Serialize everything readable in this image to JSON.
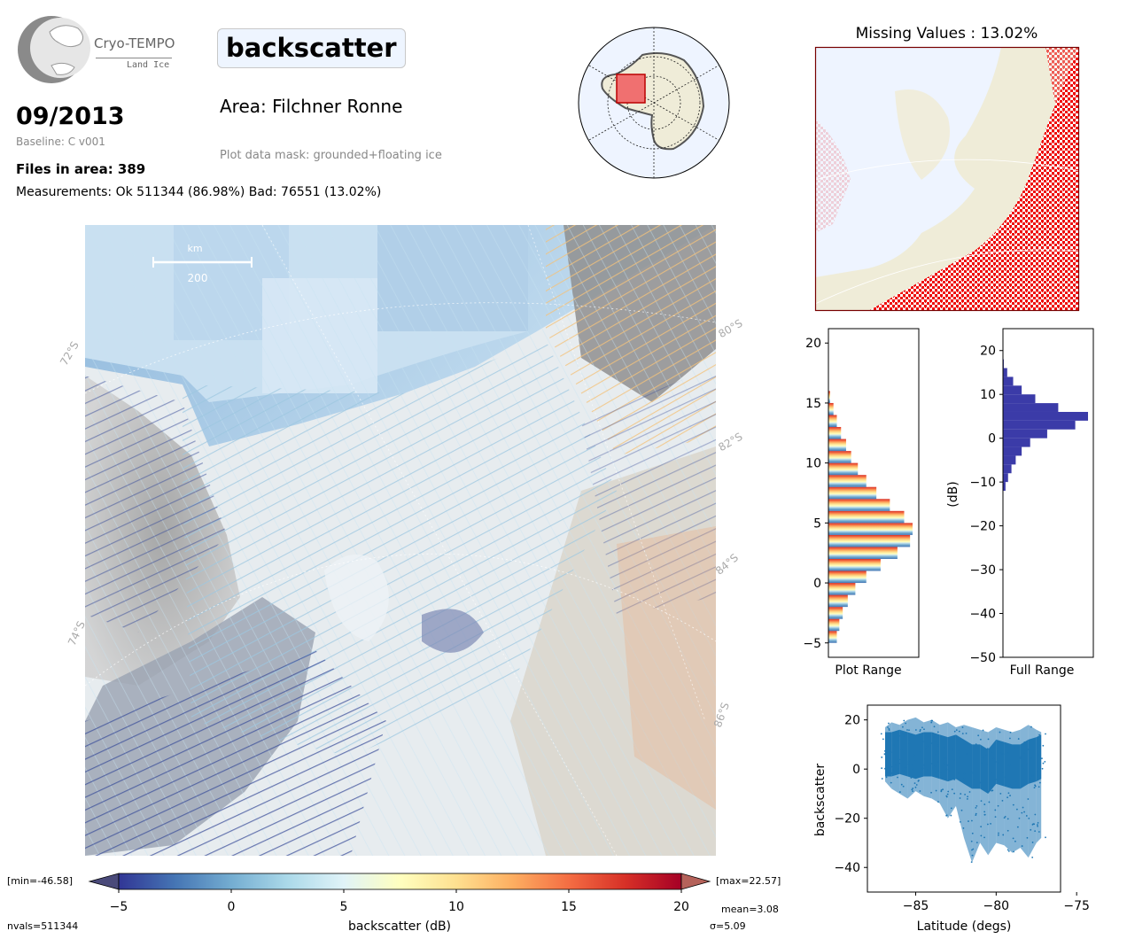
{
  "header": {
    "logo_name": "Cryo-TEMPO",
    "logo_sub": "Land Ice",
    "date": "09/2013",
    "baseline": "Baseline: C v001",
    "files_in_area": "Files in area: 389",
    "measurements": "Measurements: Ok 511344 (86.98%) Bad: 76551 (13.02%)",
    "parameter": "backscatter",
    "area": "Area: Filchner Ronne",
    "plot_mask": "Plot data mask: grounded+floating ice"
  },
  "map": {
    "scale_label_km": "km",
    "scale_value": "200",
    "lat_labels": [
      "72°S",
      "74°S",
      "80°S",
      "82°S",
      "84°S",
      "86°S"
    ]
  },
  "colorbar": {
    "min_label": "[min=-46.58]",
    "max_label": "[max=22.57]",
    "ticks": [
      "−5",
      "0",
      "5",
      "10",
      "15",
      "20"
    ],
    "label": "backscatter (dB)",
    "mean": "mean=3.08",
    "sigma": "σ=5.09",
    "nvals": "nvals=511344",
    "colors": [
      "#313695",
      "#4575b4",
      "#74add1",
      "#abd9e9",
      "#e0f3f8",
      "#ffffbf",
      "#fee090",
      "#fdae61",
      "#f46d43",
      "#d73027",
      "#a50026"
    ]
  },
  "missing_panel": {
    "title": "Missing Values : 13.02%",
    "missing_color": "#ee0000"
  },
  "chart_data": [
    {
      "type": "bar",
      "name": "plot-range-histogram",
      "orientation": "horizontal",
      "xlabel": "Plot Range",
      "ylim": [
        -6.2,
        21.2
      ],
      "yticks": [
        "−5",
        "0",
        "5",
        "10",
        "15",
        "20"
      ],
      "bins_y": [
        -5,
        -4,
        -3,
        -2,
        -1,
        0,
        1,
        2,
        3,
        4,
        5,
        6,
        7,
        8,
        9,
        10,
        11,
        12,
        13,
        14,
        15,
        16
      ],
      "counts": [
        0.1,
        0.13,
        0.17,
        0.23,
        0.32,
        0.45,
        0.62,
        0.82,
        0.97,
        1.0,
        0.9,
        0.73,
        0.57,
        0.45,
        0.35,
        0.27,
        0.21,
        0.15,
        0.1,
        0.06,
        0.02,
        0.0
      ]
    },
    {
      "type": "bar",
      "name": "full-range-histogram",
      "orientation": "horizontal",
      "xlabel": "Full Range",
      "ylabel": "(dB)",
      "ylim": [
        -50,
        25
      ],
      "yticks": [
        "20",
        "10",
        "0",
        "−10",
        "−20",
        "−30",
        "−40",
        "−50"
      ],
      "bins_y": [
        -12,
        -10,
        -8,
        -6,
        -4,
        -2,
        0,
        2,
        4,
        6,
        8,
        10,
        12,
        14,
        16
      ],
      "counts": [
        0.03,
        0.06,
        0.1,
        0.15,
        0.22,
        0.32,
        0.52,
        0.85,
        1.0,
        0.65,
        0.38,
        0.22,
        0.12,
        0.05,
        0.01
      ],
      "color": "#3b3ba8"
    },
    {
      "type": "scatter",
      "name": "backscatter-vs-latitude",
      "xlabel": "Latitude (degs)",
      "ylabel": "backscatter",
      "xlim": [
        -88,
        -76
      ],
      "ylim": [
        -50,
        26
      ],
      "xticks": [
        "−85",
        "−80",
        "−75"
      ],
      "yticks": [
        "20",
        "0",
        "−20",
        "−40"
      ],
      "color": "#1f77b4",
      "x": [
        -86.9,
        -86.5,
        -86,
        -85.5,
        -85,
        -84.5,
        -84,
        -83.5,
        -83,
        -82.5,
        -82,
        -81.5,
        -81,
        -80.5,
        -80,
        -79.5,
        -79,
        -78.5,
        -78,
        -77.5,
        -77.2
      ],
      "y_max": [
        17,
        19,
        18,
        20,
        21,
        19,
        20,
        18,
        19,
        17,
        18,
        17,
        16,
        15,
        17,
        16,
        15,
        16,
        18,
        16,
        15
      ],
      "y_min": [
        -5,
        -8,
        -10,
        -12,
        -9,
        -11,
        -12,
        -14,
        -20,
        -15,
        -28,
        -38,
        -30,
        -35,
        -30,
        -31,
        -34,
        -32,
        -36,
        -30,
        -28
      ],
      "y_center": [
        5,
        5,
        6,
        5,
        4,
        5,
        5,
        4,
        3,
        4,
        2,
        0,
        0,
        -2,
        2,
        1,
        0,
        0,
        2,
        3,
        4
      ]
    }
  ]
}
